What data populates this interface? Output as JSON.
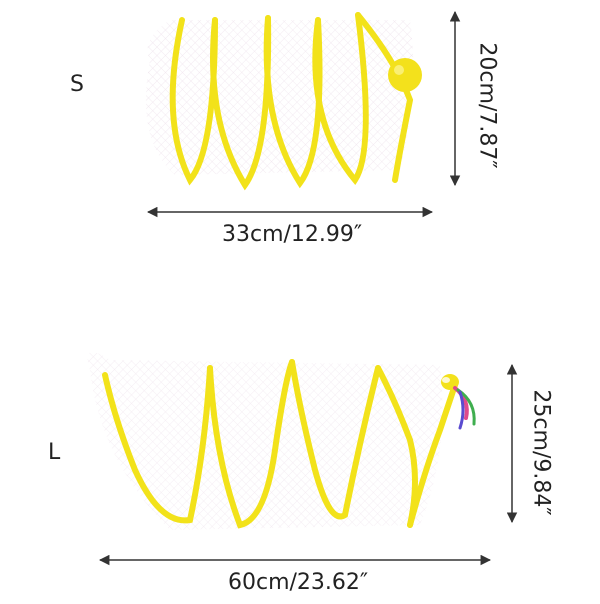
{
  "products": [
    {
      "size": "S",
      "width": "33cm/12.99″",
      "height": "20cm/7.87″"
    },
    {
      "size": "L",
      "width": "60cm/23.62″",
      "height": "25cm/9.84″"
    }
  ],
  "colors": {
    "spring": "#f2e21a",
    "spring_shade": "#d8c40a",
    "mesh": "#e9dfe6",
    "arrow": "#333333",
    "ball": "#f3e11c"
  }
}
